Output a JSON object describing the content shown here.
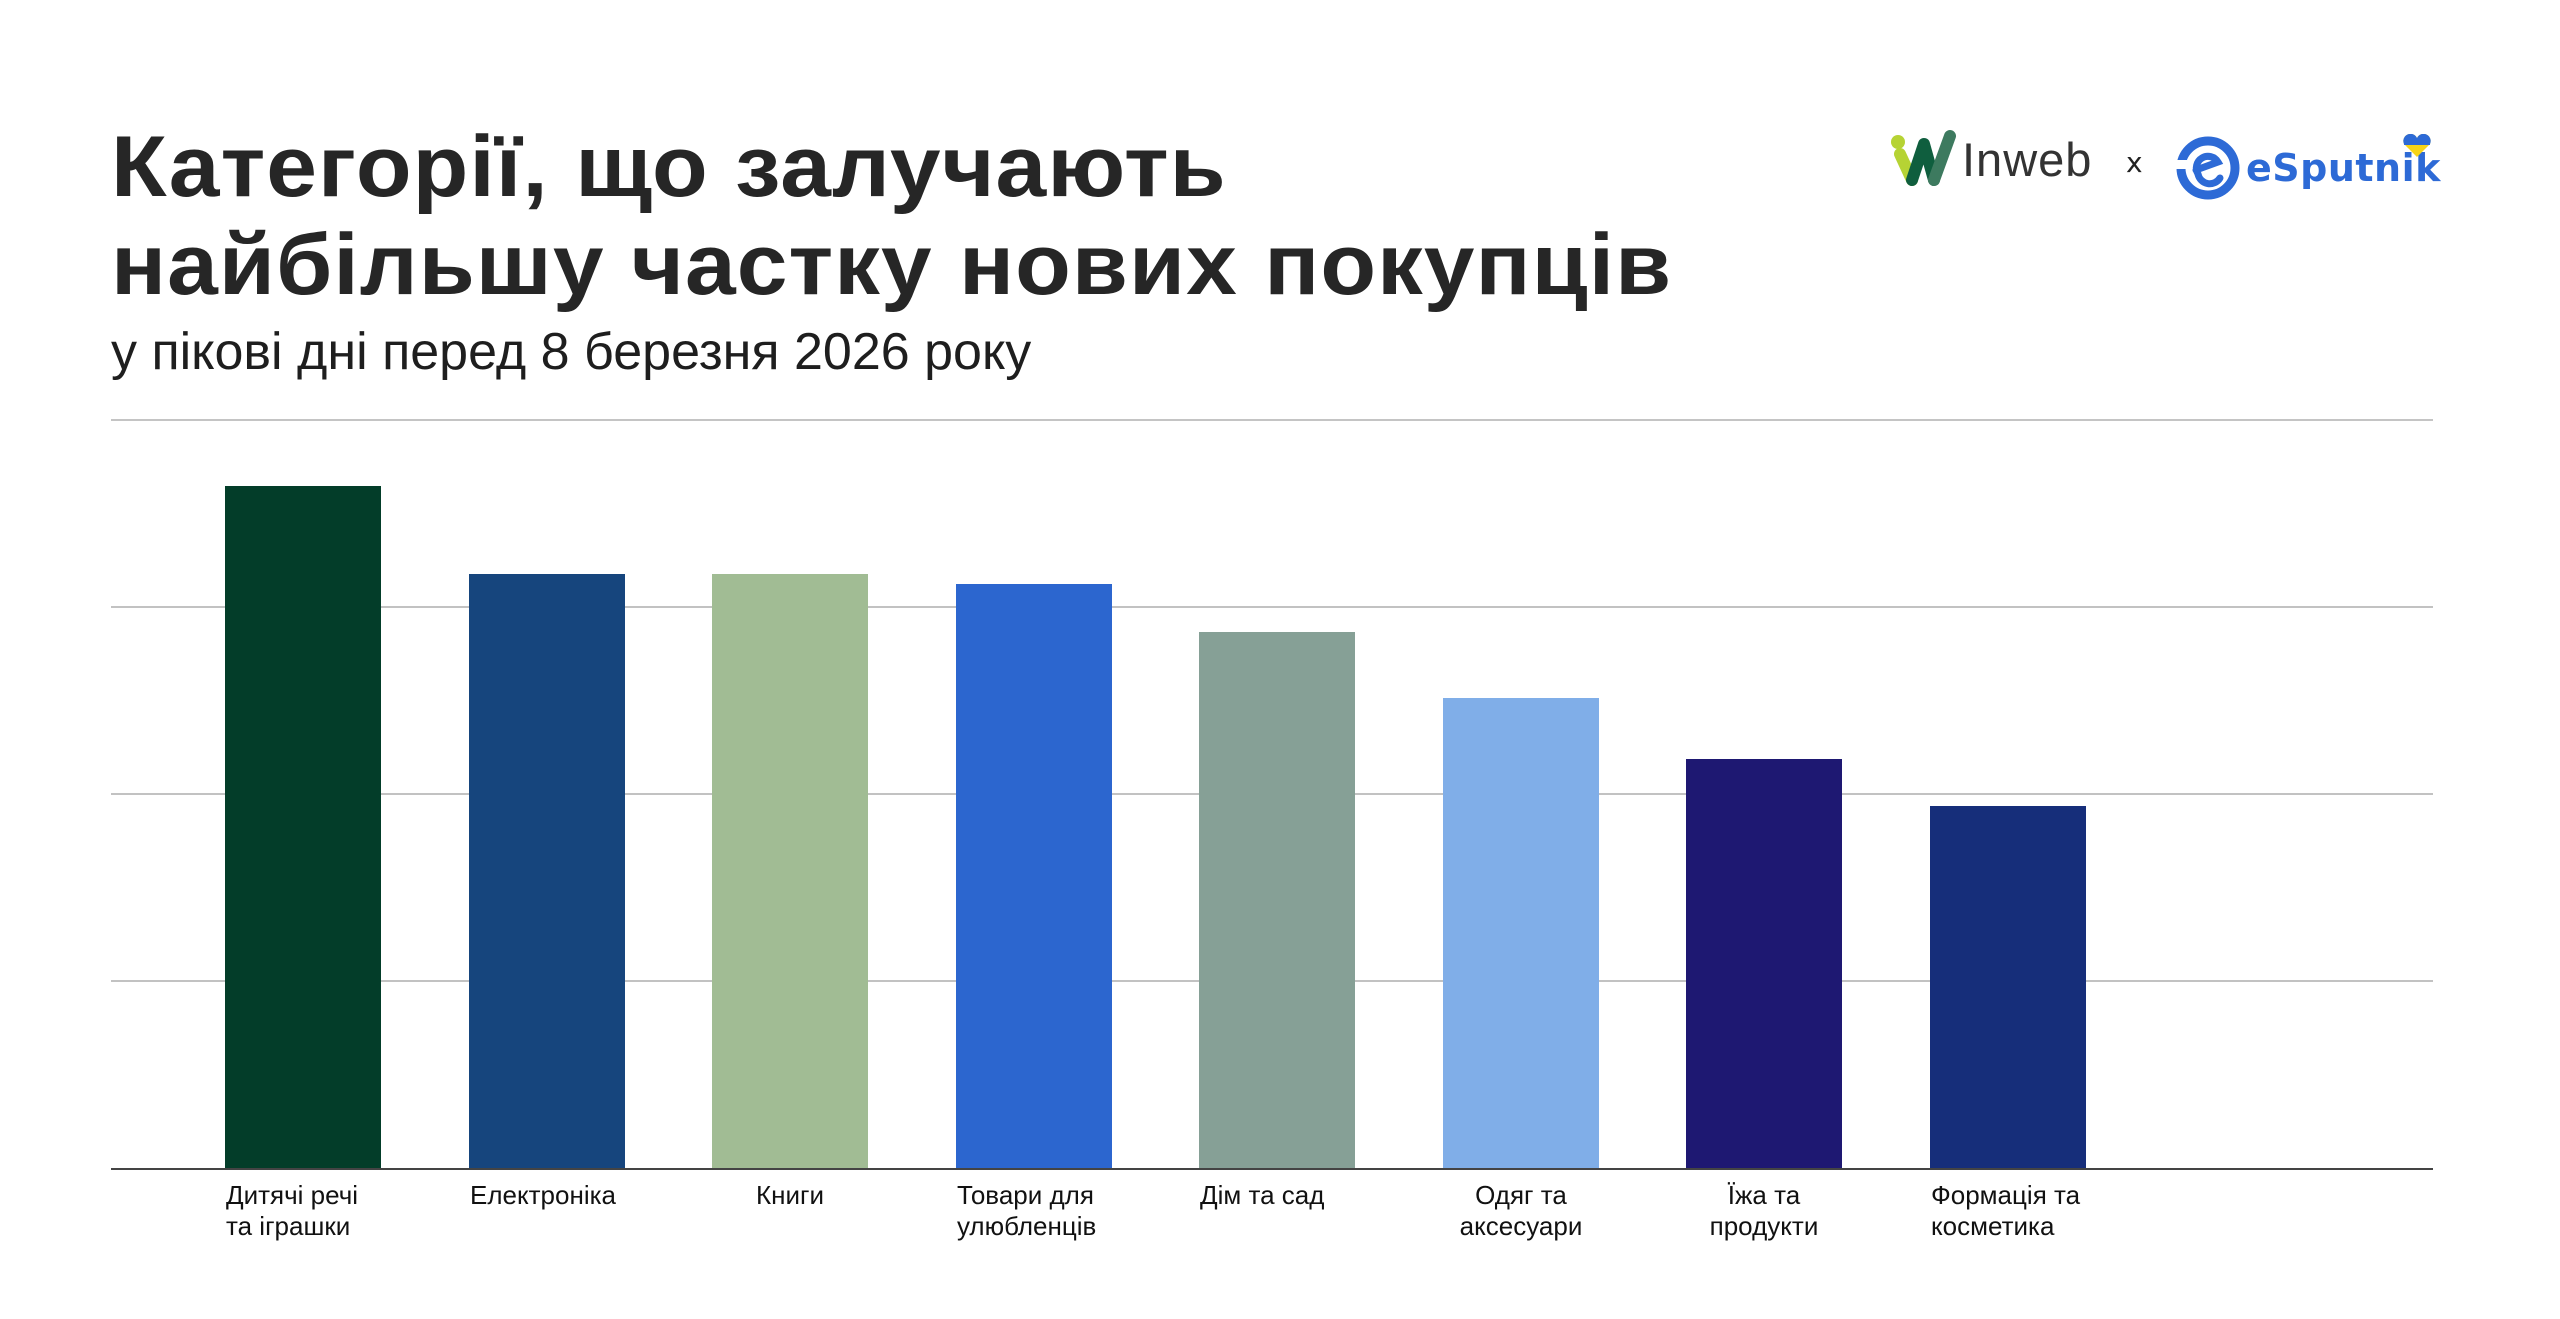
{
  "header": {
    "title_lines": [
      "Категорії, що залучають",
      "найбільшу частку нових покупців"
    ],
    "subtitle": "у пікові дні перед 8 березня 2026 року"
  },
  "logos": {
    "left": {
      "name": "Inweb",
      "text": "Inweb",
      "colors": [
        "#b6d334",
        "#0f5e3e",
        "#3d7a5f"
      ]
    },
    "separator": "x",
    "right": {
      "name": "eSputnik",
      "text": "eSputnik",
      "color": "#2d6ad6",
      "heart_colors": [
        "#2d6ad6",
        "#f7d417"
      ]
    }
  },
  "chart_data": {
    "type": "bar",
    "title": "Категорії, що залучають найбільшу частку нових покупців",
    "subtitle": "у пікові дні перед 8 березня 2026 року",
    "xlabel": "",
    "ylabel": "",
    "y_units": "gridline intervals (no y-axis tick labels shown)",
    "ylim": [
      0,
      4
    ],
    "grid": true,
    "gridlines_at": [
      1,
      2,
      3,
      4
    ],
    "legend": null,
    "categories": [
      [
        "Дитячі речі",
        "та іграшки"
      ],
      [
        "Електроніка"
      ],
      [
        "Книги"
      ],
      [
        "Товари для",
        "улюбленців"
      ],
      [
        "Дім та сад"
      ],
      [
        "Одяг та",
        "аксесуари"
      ],
      [
        "Їжа та",
        "продукти"
      ],
      [
        "Формація та",
        "косметика"
      ]
    ],
    "category_names": [
      "Дитячі речі та іграшки",
      "Електроніка",
      "Книги",
      "Товари для улюбленців",
      "Дім та сад",
      "Одяг та аксесуари",
      "Їжа та продукти",
      "Формація та косметика"
    ],
    "values": [
      3.65,
      3.18,
      3.18,
      3.13,
      2.87,
      2.52,
      2.19,
      1.94
    ],
    "colors": [
      "#033d29",
      "#16457d",
      "#a1bc94",
      "#2c66cf",
      "#86a096",
      "#80aee8",
      "#1e1872",
      "#162e7a"
    ]
  }
}
